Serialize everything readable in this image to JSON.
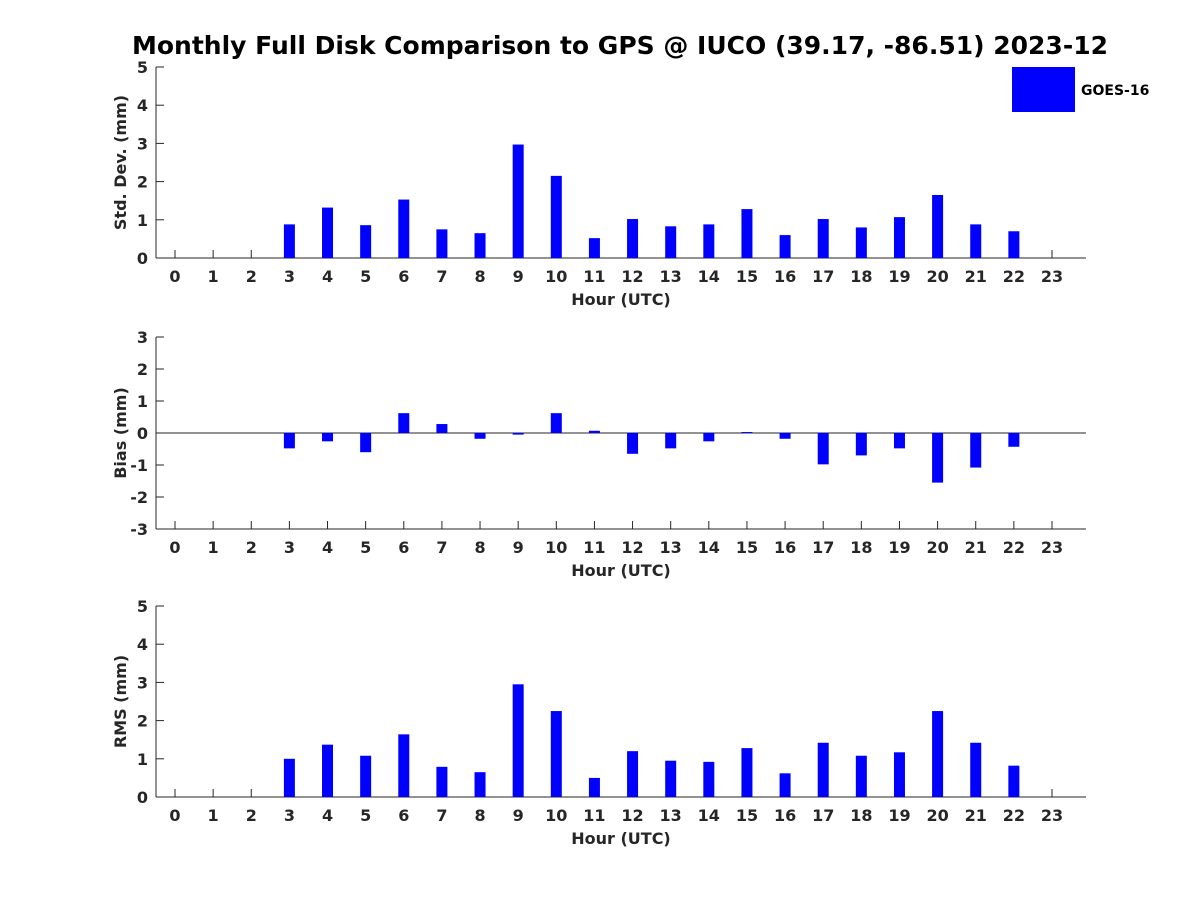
{
  "title": "Monthly Full Disk Comparison to GPS @ IUCO (39.17, -86.51) 2023-12",
  "legend": {
    "label": "GOES-16",
    "color": "#0000ff",
    "placement": "top-right"
  },
  "chart_data": [
    {
      "type": "bar",
      "ylabel": "Std. Dev. (mm)",
      "xlabel": "Hour (UTC)",
      "ylim": [
        0,
        5
      ],
      "yticks": [
        0,
        1,
        2,
        3,
        4,
        5
      ],
      "categories": [
        "0",
        "1",
        "2",
        "3",
        "4",
        "5",
        "6",
        "7",
        "8",
        "9",
        "10",
        "11",
        "12",
        "13",
        "14",
        "15",
        "16",
        "17",
        "18",
        "19",
        "20",
        "21",
        "22",
        "23"
      ],
      "series": [
        {
          "name": "GOES-16",
          "values": [
            0,
            0,
            0,
            0.88,
            1.32,
            0.86,
            1.53,
            0.75,
            0.65,
            2.97,
            2.15,
            0.52,
            1.02,
            0.83,
            0.88,
            1.28,
            0.6,
            1.02,
            0.8,
            1.07,
            1.65,
            0.88,
            0.7,
            0
          ]
        }
      ]
    },
    {
      "type": "bar",
      "ylabel": "Bias (mm)",
      "xlabel": "Hour (UTC)",
      "ylim": [
        -3,
        3
      ],
      "yticks": [
        -3,
        -2,
        -1,
        0,
        1,
        2,
        3
      ],
      "categories": [
        "0",
        "1",
        "2",
        "3",
        "4",
        "5",
        "6",
        "7",
        "8",
        "9",
        "10",
        "11",
        "12",
        "13",
        "14",
        "15",
        "16",
        "17",
        "18",
        "19",
        "20",
        "21",
        "22",
        "23"
      ],
      "series": [
        {
          "name": "GOES-16",
          "values": [
            0,
            0,
            0,
            -0.48,
            -0.26,
            -0.6,
            0.62,
            0.28,
            -0.18,
            -0.05,
            0.62,
            0.07,
            -0.65,
            -0.48,
            -0.26,
            0.03,
            -0.18,
            -0.98,
            -0.7,
            -0.48,
            -1.55,
            -1.08,
            -0.43,
            0
          ]
        }
      ]
    },
    {
      "type": "bar",
      "ylabel": "RMS (mm)",
      "xlabel": "Hour (UTC)",
      "ylim": [
        0,
        5
      ],
      "yticks": [
        0,
        1,
        2,
        3,
        4,
        5
      ],
      "categories": [
        "0",
        "1",
        "2",
        "3",
        "4",
        "5",
        "6",
        "7",
        "8",
        "9",
        "10",
        "11",
        "12",
        "13",
        "14",
        "15",
        "16",
        "17",
        "18",
        "19",
        "20",
        "21",
        "22",
        "23"
      ],
      "series": [
        {
          "name": "GOES-16",
          "values": [
            0,
            0,
            0,
            1.0,
            1.37,
            1.08,
            1.64,
            0.79,
            0.65,
            2.95,
            2.25,
            0.5,
            1.2,
            0.95,
            0.92,
            1.28,
            0.62,
            1.42,
            1.08,
            1.17,
            2.25,
            1.42,
            0.82,
            0
          ]
        }
      ]
    }
  ]
}
